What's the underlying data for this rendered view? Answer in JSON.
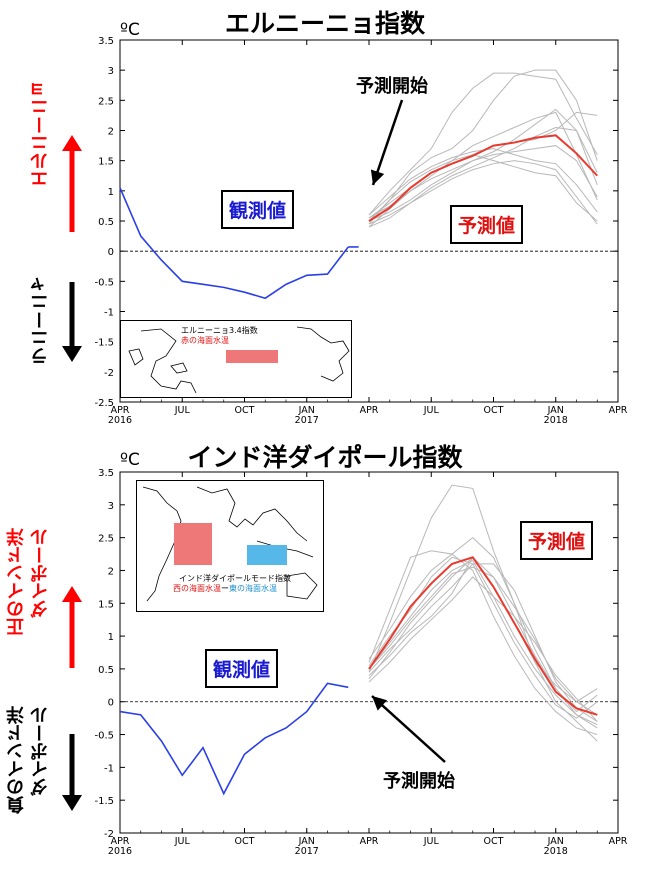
{
  "charts": [
    {
      "title": "エルニーニョ指数",
      "unit": "ºC",
      "side_up": "エルニーニョ",
      "side_down": "ラニーニャ",
      "obs_label": "観測値",
      "fc_label": "予測値",
      "start_label": "予測開始",
      "inset_title": "エルニーニョ3.4指数",
      "inset_sub": "赤の海面水温",
      "colors": {
        "obs": "#2b3fe8",
        "mean": "#e83a2e",
        "member": "#b8b8b8",
        "up": "#ff0000",
        "down": "#000000"
      }
    },
    {
      "title": "インド洋ダイポール指数",
      "unit": "ºC",
      "side_up": "正のインド洋ダイポール",
      "side_up_1": "正のインド洋",
      "side_up_2": "ダイポール",
      "side_down_1": "負のインド洋",
      "side_down_2": "ダイポール",
      "obs_label": "観測値",
      "fc_label": "予測値",
      "start_label": "予測開始",
      "inset_title": "インド洋ダイポールモード指数",
      "inset_sub_a": "西の海面水温",
      "inset_sub_b": "ー",
      "inset_sub_c": "東の海面水温",
      "colors": {
        "obs": "#2b3fe8",
        "mean": "#e83a2e",
        "member": "#b8b8b8",
        "up": "#ff0000",
        "down": "#000000"
      }
    }
  ],
  "chart_data": [
    {
      "type": "line",
      "title": "エルニーニョ指数",
      "ylabel": "ºC",
      "xticks": [
        {
          "label": "APR",
          "year": "2016"
        },
        {
          "label": "JUL",
          "year": ""
        },
        {
          "label": "OCT",
          "year": ""
        },
        {
          "label": "JAN",
          "year": "2017"
        },
        {
          "label": "APR",
          "year": ""
        },
        {
          "label": "JUL",
          "year": ""
        },
        {
          "label": "OCT",
          "year": ""
        },
        {
          "label": "JAN",
          "year": "2018"
        },
        {
          "label": "APR",
          "year": ""
        }
      ],
      "yticks": [
        3.5,
        3,
        2.5,
        2,
        1.5,
        1,
        0.5,
        0,
        -0.5,
        -1,
        -1.5,
        -2,
        -2.5
      ],
      "ylim": [
        -2.5,
        3.5
      ],
      "xlim": [
        0,
        24
      ],
      "observed": {
        "x": [
          0,
          1,
          2,
          3,
          4,
          5,
          6,
          7,
          8,
          9,
          10,
          11
        ],
        "y": [
          1.05,
          0.25,
          -0.15,
          -0.5,
          -0.55,
          -0.6,
          -0.68,
          -0.78,
          -0.55,
          -0.4,
          -0.38,
          0.07
        ]
      },
      "observed_tail": {
        "x": [
          11,
          11.5
        ],
        "y": [
          0.07,
          0.07
        ]
      },
      "ensemble_mean": {
        "x": [
          12,
          13,
          14,
          15,
          16,
          17,
          18,
          19,
          20,
          21,
          22,
          23
        ],
        "y": [
          0.5,
          0.72,
          1.05,
          1.3,
          1.45,
          1.58,
          1.75,
          1.8,
          1.88,
          1.92,
          1.62,
          1.25
        ]
      },
      "members": [
        {
          "x": [
            12,
            13,
            14,
            15,
            16,
            17,
            18,
            19,
            20,
            21,
            22,
            23
          ],
          "y": [
            0.45,
            0.85,
            1.3,
            1.55,
            1.7,
            2.0,
            2.5,
            2.9,
            3.0,
            3.0,
            2.5,
            1.5
          ]
        },
        {
          "x": [
            12,
            13,
            14,
            15,
            16,
            17,
            18,
            19,
            20,
            21,
            22,
            23
          ],
          "y": [
            0.6,
            1.0,
            1.35,
            1.7,
            2.3,
            2.7,
            2.95,
            2.95,
            2.9,
            2.85,
            2.2,
            1.6
          ]
        },
        {
          "x": [
            12,
            13,
            14,
            15,
            16,
            17,
            18,
            19,
            20,
            21,
            22,
            23
          ],
          "y": [
            0.4,
            0.7,
            1.0,
            1.25,
            1.5,
            1.75,
            1.9,
            2.05,
            2.2,
            2.3,
            1.6,
            0.85
          ]
        },
        {
          "x": [
            12,
            13,
            14,
            15,
            16,
            17,
            18,
            19,
            20,
            21,
            22,
            23
          ],
          "y": [
            0.55,
            0.8,
            1.05,
            1.3,
            1.45,
            1.6,
            1.75,
            1.8,
            1.85,
            2.0,
            2.3,
            2.25
          ]
        },
        {
          "x": [
            12,
            13,
            14,
            15,
            16,
            17,
            18,
            19,
            20,
            21,
            22,
            23
          ],
          "y": [
            0.5,
            0.65,
            0.85,
            1.1,
            1.3,
            1.5,
            1.6,
            1.65,
            1.7,
            1.75,
            1.5,
            0.9
          ]
        },
        {
          "x": [
            12,
            13,
            14,
            15,
            16,
            17,
            18,
            19,
            20,
            21,
            22,
            23
          ],
          "y": [
            0.45,
            0.6,
            0.8,
            1.0,
            1.2,
            1.35,
            1.45,
            1.5,
            1.45,
            1.35,
            0.9,
            0.45
          ]
        },
        {
          "x": [
            12,
            13,
            14,
            15,
            16,
            17,
            18,
            19,
            20,
            21,
            22,
            23
          ],
          "y": [
            0.6,
            0.9,
            1.2,
            1.4,
            1.55,
            1.65,
            1.7,
            1.6,
            1.5,
            1.45,
            1.1,
            0.65
          ]
        },
        {
          "x": [
            12,
            13,
            14,
            15,
            16,
            17,
            18,
            19,
            20,
            21,
            22,
            23
          ],
          "y": [
            0.4,
            0.55,
            0.8,
            1.05,
            1.25,
            1.4,
            1.55,
            1.7,
            1.9,
            2.05,
            2.0,
            1.1
          ]
        },
        {
          "x": [
            12,
            13,
            14,
            15,
            16,
            17,
            18,
            19,
            20,
            21,
            22,
            23
          ],
          "y": [
            0.55,
            0.75,
            1.0,
            1.2,
            1.35,
            1.5,
            1.65,
            1.85,
            2.1,
            2.35,
            2.0,
            1.3
          ]
        },
        {
          "x": [
            12,
            13,
            14,
            15,
            16,
            17,
            18,
            19,
            20,
            21,
            22,
            23
          ],
          "y": [
            0.5,
            0.85,
            1.15,
            1.35,
            1.5,
            1.6,
            1.5,
            1.4,
            1.3,
            1.25,
            0.8,
            0.5
          ]
        }
      ]
    },
    {
      "type": "line",
      "title": "インド洋ダイポール指数",
      "ylabel": "ºC",
      "xticks": [
        {
          "label": "APR",
          "year": "2016"
        },
        {
          "label": "JUL",
          "year": ""
        },
        {
          "label": "OCT",
          "year": ""
        },
        {
          "label": "JAN",
          "year": "2017"
        },
        {
          "label": "APR",
          "year": ""
        },
        {
          "label": "JUL",
          "year": ""
        },
        {
          "label": "OCT",
          "year": ""
        },
        {
          "label": "JAN",
          "year": "2018"
        },
        {
          "label": "APR",
          "year": ""
        }
      ],
      "yticks": [
        3.5,
        3,
        2.5,
        2,
        1.5,
        1,
        0.5,
        0,
        -0.5,
        -1,
        -1.5,
        -2
      ],
      "ylim": [
        -2,
        3.5
      ],
      "xlim": [
        0,
        24
      ],
      "observed": {
        "x": [
          0,
          1,
          2,
          3,
          4,
          5,
          6,
          7,
          8,
          9,
          10,
          11
        ],
        "y": [
          -0.15,
          -0.2,
          -0.6,
          -1.12,
          -0.7,
          -1.4,
          -0.8,
          -0.55,
          -0.4,
          -0.15,
          0.28,
          0.22
        ]
      },
      "ensemble_mean": {
        "x": [
          12,
          13,
          14,
          15,
          16,
          17,
          18,
          19,
          20,
          21,
          22,
          23
        ],
        "y": [
          0.5,
          0.95,
          1.45,
          1.8,
          2.1,
          2.2,
          1.75,
          1.2,
          0.65,
          0.15,
          -0.1,
          -0.2
        ]
      },
      "members": [
        {
          "x": [
            12,
            13,
            14,
            15,
            16,
            17,
            18,
            19,
            20,
            21,
            22,
            23
          ],
          "y": [
            0.45,
            1.2,
            2.0,
            2.8,
            3.3,
            3.25,
            2.3,
            1.5,
            0.8,
            0.2,
            -0.2,
            -0.35
          ]
        },
        {
          "x": [
            12,
            13,
            14,
            15,
            16,
            17,
            18,
            19,
            20,
            21,
            22,
            23
          ],
          "y": [
            0.6,
            1.4,
            2.2,
            2.3,
            2.25,
            2.5,
            2.2,
            1.5,
            0.6,
            0.0,
            -0.3,
            -0.6
          ]
        },
        {
          "x": [
            12,
            13,
            14,
            15,
            16,
            17,
            18,
            19,
            20,
            21,
            22,
            23
          ],
          "y": [
            0.35,
            0.75,
            1.2,
            1.55,
            1.9,
            2.2,
            1.9,
            1.3,
            0.7,
            0.2,
            -0.15,
            0.1
          ]
        },
        {
          "x": [
            12,
            13,
            14,
            15,
            16,
            17,
            18,
            19,
            20,
            21,
            22,
            23
          ],
          "y": [
            0.5,
            0.9,
            1.3,
            1.7,
            2.0,
            2.15,
            1.6,
            1.0,
            0.5,
            0.1,
            -0.2,
            -0.4
          ]
        },
        {
          "x": [
            12,
            13,
            14,
            15,
            16,
            17,
            18,
            19,
            20,
            21,
            22,
            23
          ],
          "y": [
            0.55,
            1.0,
            1.4,
            1.9,
            2.2,
            2.1,
            1.5,
            0.9,
            0.4,
            -0.05,
            -0.25,
            0.0
          ]
        },
        {
          "x": [
            12,
            13,
            14,
            15,
            16,
            17,
            18,
            19,
            20,
            21,
            22,
            23
          ],
          "y": [
            0.4,
            0.7,
            1.05,
            1.3,
            1.65,
            2.2,
            1.75,
            1.2,
            0.6,
            0.25,
            0.0,
            -0.2
          ]
        },
        {
          "x": [
            12,
            13,
            14,
            15,
            16,
            17,
            18,
            19,
            20,
            21,
            22,
            23
          ],
          "y": [
            0.65,
            1.1,
            1.6,
            2.0,
            2.25,
            2.0,
            1.3,
            0.7,
            0.2,
            -0.15,
            -0.4,
            -0.5
          ]
        },
        {
          "x": [
            12,
            13,
            14,
            15,
            16,
            17,
            18,
            19,
            20,
            21,
            22,
            23
          ],
          "y": [
            0.3,
            0.6,
            0.95,
            1.25,
            1.55,
            1.9,
            1.6,
            1.3,
            0.9,
            0.4,
            0.05,
            -0.3
          ]
        },
        {
          "x": [
            12,
            13,
            14,
            15,
            16,
            17,
            18,
            19,
            20,
            21,
            22,
            23
          ],
          "y": [
            0.5,
            0.85,
            1.25,
            1.6,
            1.95,
            2.05,
            1.9,
            1.45,
            0.95,
            0.35,
            0.0,
            0.2
          ]
        },
        {
          "x": [
            12,
            13,
            14,
            15,
            16,
            17,
            18,
            19,
            20,
            21,
            22,
            23
          ],
          "y": [
            0.45,
            0.8,
            1.1,
            1.45,
            1.75,
            2.1,
            2.1,
            1.7,
            1.0,
            0.3,
            -0.1,
            -0.3
          ]
        }
      ]
    }
  ]
}
